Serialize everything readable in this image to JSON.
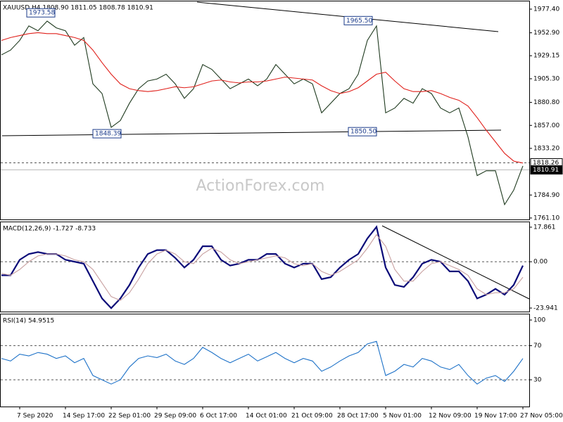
{
  "chart_data": [
    {
      "type": "line",
      "title": "XAUUSD,H4  1808.90 1811.05 1808.78 1810.91",
      "watermark": "ActionForex.com",
      "ylim": [
        1759.6,
        1985.4
      ],
      "yticks": [
        {
          "value": 1977.4,
          "label": "1977.40"
        },
        {
          "value": 1952.9,
          "label": "1952.90"
        },
        1929.15,
        {
          "value": 1905.3,
          "label": "1905.30"
        },
        {
          "value": 1880.8,
          "label": "1880.80"
        },
        {
          "value": 1857,
          "label": "1857.00"
        },
        {
          "value": 1833.2,
          "label": "1833.20"
        },
        {
          "value": 1784.9,
          "label": "1784.90"
        },
        {
          "value": 1761.1,
          "label": "1761.10"
        }
      ],
      "levels": [
        1818.26,
        1810.91
      ],
      "annotations": [
        1973.58,
        1848.39,
        {
          "value": 1965.5,
          "label": "1965.50"
        },
        {
          "value": 1850.5,
          "label": "1850.50"
        }
      ],
      "series": [
        {
          "color": "#1f3a1f",
          "values": [
            1930,
            1935,
            1945,
            1960,
            1955,
            1965,
            1958,
            1955,
            1940,
            1948,
            1900,
            1890,
            1855,
            1862,
            1880,
            1895,
            1903,
            1905,
            1910,
            1900,
            1885,
            1895,
            1920,
            1915,
            1905,
            1895,
            1900,
            1905,
            1898,
            1905,
            1920,
            1910,
            1900,
            1905,
            1900,
            1870,
            1880,
            1890,
            1895,
            1910,
            1945,
            1960,
            1870,
            1875,
            1885,
            1880,
            1895,
            1890,
            1875,
            1870,
            1875,
            1845,
            1805,
            1810,
            1810,
            1775,
            1790,
            1815
          ]
        },
        {
          "color": "#e0201b",
          "values": [
            1945,
            1948,
            1950,
            1952,
            1953,
            1952,
            1952,
            1950,
            1948,
            1945,
            1935,
            1922,
            1910,
            1900,
            1895,
            1893,
            1892,
            1893,
            1895,
            1897,
            1896,
            1897,
            1900,
            1903,
            1904,
            1902,
            1901,
            1902,
            1902,
            1903,
            1905,
            1907,
            1906,
            1905,
            1904,
            1898,
            1893,
            1890,
            1892,
            1896,
            1903,
            1910,
            1912,
            1903,
            1895,
            1892,
            1892,
            1893,
            1890,
            1886,
            1883,
            1877,
            1865,
            1852,
            1840,
            1828,
            1820,
            1818
          ]
        }
      ]
    },
    {
      "type": "line",
      "title": "MACD(12,26,9) -1.727 -8.733",
      "ylim": [
        -25.76,
        20.4
      ],
      "yticks": [
        17.861,
        {
          "value": 0,
          "label": "0.00"
        },
        -23.941
      ],
      "levels": [
        0
      ],
      "series": [
        {
          "color": "#0a0a78",
          "values": [
            -7,
            -7,
            1,
            4,
            5,
            4,
            4,
            1,
            0,
            -1,
            -10,
            -19,
            -24,
            -19,
            -12,
            -3,
            4,
            6,
            6,
            2,
            -3,
            1,
            8,
            8,
            1,
            -2,
            -1,
            1,
            1,
            4,
            4,
            -1,
            -3,
            -1,
            -1,
            -9,
            -8,
            -3,
            1,
            4,
            12,
            18,
            -3,
            -12,
            -13,
            -8,
            -1,
            1,
            0,
            -5,
            -5,
            -10,
            -19,
            -17,
            -14,
            -17,
            -12,
            -2
          ]
        },
        {
          "color": "#c8a0a0",
          "values": [
            -6,
            -7,
            -4,
            0,
            3,
            4,
            4,
            3,
            1,
            0,
            -4,
            -11,
            -18,
            -20,
            -16,
            -9,
            -1,
            4,
            6,
            4,
            0,
            -1,
            4,
            7,
            5,
            1,
            -1,
            0,
            1,
            2,
            3,
            2,
            -1,
            -2,
            -1,
            -5,
            -7,
            -5,
            -2,
            1,
            7,
            14,
            8,
            -4,
            -10,
            -10,
            -5,
            -1,
            0,
            -2,
            -4,
            -7,
            -14,
            -17,
            -16,
            -16,
            -14,
            -8
          ]
        }
      ]
    },
    {
      "type": "line",
      "title": "RSI(14) 54.9515",
      "ylim": [
        -1.3,
        106.6
      ],
      "yticks": [
        100,
        70,
        30
      ],
      "levels": [
        70,
        30
      ],
      "categories": [
        null,
        null,
        "7 Sep 2020",
        null,
        null,
        null,
        null,
        "14 Sep 17:00",
        null,
        null,
        null,
        null,
        "22 Sep 01:00",
        null,
        null,
        null,
        null,
        "29 Sep 09:00",
        null,
        null,
        null,
        null,
        "6 Oct 17:00",
        null,
        null,
        null,
        null,
        "14 Oct 01:00",
        null,
        null,
        null,
        null,
        "21 Oct 09:00",
        null,
        null,
        null,
        null,
        "28 Oct 17:00",
        null,
        null,
        null,
        null,
        "5 Nov 01:00",
        null,
        null,
        null,
        null,
        "12 Nov 09:00",
        null,
        null,
        null,
        null,
        "19 Nov 17:00",
        null,
        null,
        null,
        null,
        "27 Nov 05:00"
      ],
      "series": [
        {
          "color": "#1e72c8",
          "values": [
            55,
            52,
            60,
            58,
            62,
            60,
            55,
            58,
            50,
            55,
            35,
            30,
            25,
            30,
            45,
            55,
            58,
            56,
            60,
            52,
            48,
            55,
            68,
            62,
            55,
            50,
            55,
            60,
            52,
            57,
            62,
            55,
            50,
            55,
            52,
            40,
            45,
            52,
            58,
            62,
            72,
            75,
            35,
            40,
            48,
            45,
            55,
            52,
            45,
            42,
            48,
            35,
            25,
            32,
            35,
            28,
            40,
            55
          ]
        }
      ]
    }
  ]
}
